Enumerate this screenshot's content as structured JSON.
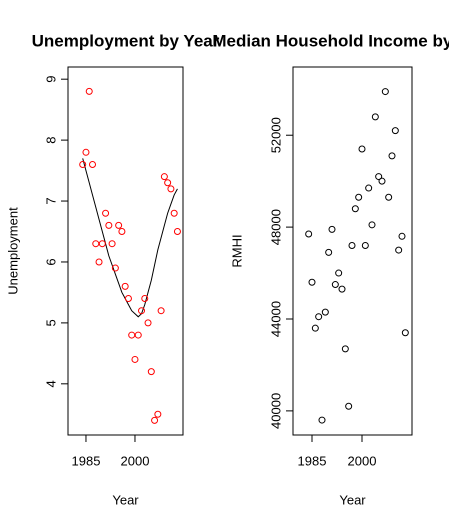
{
  "chart_data": [
    {
      "type": "scatter",
      "title": "Unemployment by Year",
      "xlabel": "Year",
      "ylabel": "Unemployment",
      "color": "#ff0000",
      "x": [
        1984,
        1985,
        1986,
        1987,
        1988,
        1989,
        1990,
        1991,
        1992,
        1993,
        1994,
        1995,
        1996,
        1997,
        1998,
        1999,
        2000,
        2001,
        2002,
        2003,
        2004,
        2005,
        2006,
        2007,
        2008,
        2009,
        2010,
        2011,
        2012,
        2013
      ],
      "values": [
        7.6,
        7.8,
        8.8,
        7.6,
        6.3,
        6.0,
        6.3,
        6.8,
        6.6,
        6.3,
        5.9,
        6.6,
        6.5,
        5.6,
        5.4,
        4.8,
        4.4,
        4.8,
        5.2,
        5.4,
        5.0,
        4.2,
        3.4,
        3.5,
        5.2,
        7.4,
        7.3,
        7.2,
        6.8,
        6.5
      ],
      "trend": [
        7.7,
        7.5,
        7.3,
        7.1,
        6.9,
        6.7,
        6.5,
        6.3,
        6.1,
        5.95,
        5.8,
        5.65,
        5.5,
        5.4,
        5.3,
        5.2,
        5.15,
        5.1,
        5.15,
        5.3,
        5.5,
        5.7,
        5.95,
        6.2,
        6.4,
        6.6,
        6.8,
        6.95,
        7.1,
        7.2
      ],
      "xlim": [
        1979.5,
        2014.7
      ],
      "ylim": [
        3.16,
        9.2
      ],
      "xticks": [
        1985,
        2000
      ],
      "yticks": [
        4,
        5,
        6,
        7,
        8,
        9
      ]
    },
    {
      "type": "scatter",
      "title": "Median Household Income by Year",
      "xlabel": "Year",
      "ylabel": "RMHI",
      "color": "#000000",
      "x": [
        1984,
        1985,
        1986,
        1987,
        1988,
        1989,
        1990,
        1991,
        1992,
        1993,
        1994,
        1995,
        1996,
        1997,
        1998,
        1999,
        2000,
        2001,
        2002,
        2003,
        2004,
        2005,
        2006,
        2007,
        2008,
        2009,
        2010,
        2011,
        2012,
        2013
      ],
      "values": [
        47700,
        45600,
        43600,
        44100,
        39600,
        44300,
        46900,
        47900,
        45500,
        46000,
        45300,
        42700,
        40200,
        47200,
        48800,
        49300,
        51400,
        47200,
        49700,
        48100,
        52800,
        50200,
        50000,
        53900,
        49300,
        51100,
        52200,
        47000,
        47600,
        43400
      ],
      "xlim": [
        1979.3,
        2015.0
      ],
      "ylim": [
        38950,
        54970
      ],
      "xticks": [
        1985,
        2000
      ],
      "yticks": [
        40000,
        44000,
        48000,
        52000
      ]
    }
  ]
}
